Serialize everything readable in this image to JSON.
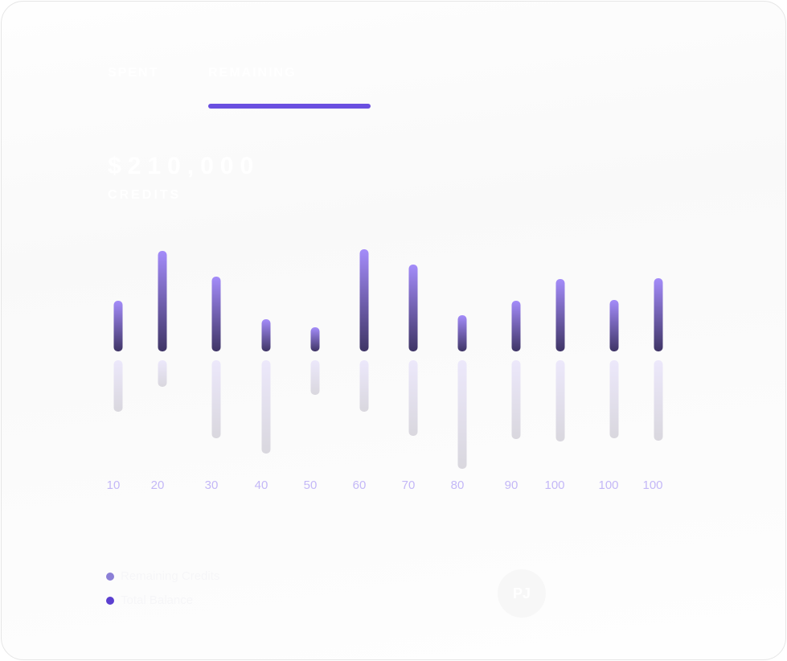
{
  "tabs": [
    {
      "label": "SPENT"
    },
    {
      "label": "REMAINING",
      "active": true
    }
  ],
  "balance": {
    "amount": "$210,000",
    "unit": "CREDITS"
  },
  "legend": [
    {
      "label": "Remaining Credits",
      "color": "#8b7fd6"
    },
    {
      "label": "Total Balance",
      "color": "#5b3fd0"
    }
  ],
  "avatar": {
    "initials": "PJ"
  },
  "colors": {
    "accent": "#6a4fe0",
    "bar_top": "#a48cfa",
    "bar_bottom": "#3f3566",
    "bar_faint_top": "#ece8fb",
    "bar_faint_bottom": "#d9d7de",
    "tick_label": "#c4b8f7"
  },
  "chart_data": {
    "type": "bar",
    "categories": [
      "10",
      "20",
      "30",
      "40",
      "50",
      "60",
      "70",
      "80",
      "90",
      "100",
      "100",
      "100"
    ],
    "series": [
      {
        "values": [
          63,
          125,
          93,
          40,
          30,
          127,
          108,
          45,
          63,
          90,
          64,
          91
        ]
      },
      {
        "values": [
          64,
          33,
          97,
          116,
          43,
          64,
          94,
          135,
          98,
          101,
          97,
          100
        ]
      }
    ],
    "grid": false
  }
}
